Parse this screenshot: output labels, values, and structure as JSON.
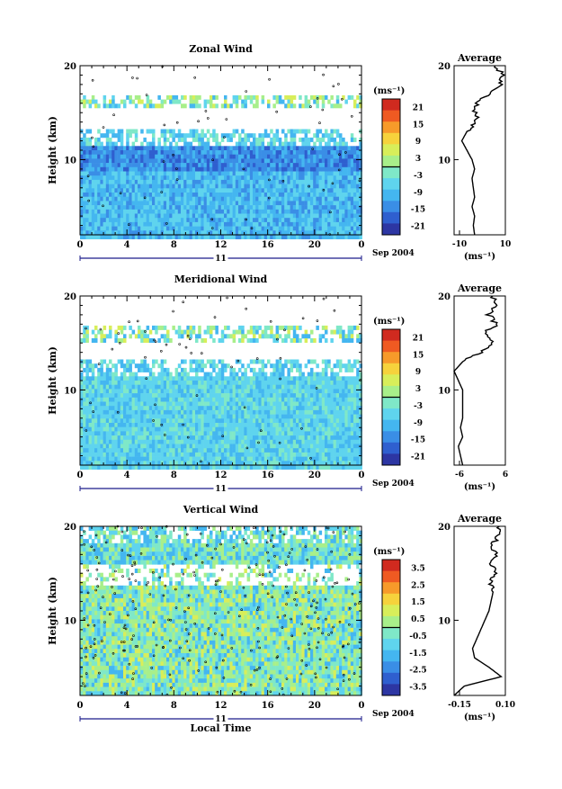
{
  "shared": {
    "ylabel": "Height (km)",
    "date_label": "Sep 2004",
    "day_label": "11",
    "xlabel": "Local Time",
    "x_ticks": [
      "0",
      "4",
      "8",
      "12",
      "16",
      "20",
      "0"
    ],
    "y_ticks": [
      "20",
      "10"
    ],
    "unit_label": "(ms⁻¹)",
    "avg_title": "Average"
  },
  "colors": {
    "palette": [
      "#2a2c6b",
      "#2d36a3",
      "#2f5fcf",
      "#3a8ee6",
      "#44b6f0",
      "#5fd4ee",
      "#7fe8c8",
      "#a8ef8a",
      "#d8ee5a",
      "#f6d23c",
      "#f79a2a",
      "#ef5a22",
      "#d02a1f"
    ]
  },
  "chart_data": [
    {
      "type": "heatmap",
      "title": "Zonal Wind",
      "xlabel": "",
      "ylabel": "Height (km)",
      "xlim": [
        0,
        24
      ],
      "ylim": [
        2,
        20
      ],
      "colorbar": {
        "ticks": [
          "21",
          "15",
          "9",
          "3",
          "-3",
          "-9",
          "-15",
          "-21"
        ],
        "range": [
          -24,
          24
        ]
      },
      "average": {
        "title": "Average",
        "xlim": [
          -10,
          10
        ],
        "xticks": [
          "-10",
          "10"
        ],
        "unit": "(ms⁻¹)",
        "profile": [
          [
            2,
            -2
          ],
          [
            3,
            -2.5
          ],
          [
            4,
            -2
          ],
          [
            5,
            -3
          ],
          [
            6,
            -2
          ],
          [
            7,
            -2.5
          ],
          [
            8,
            -3
          ],
          [
            9,
            -2
          ],
          [
            10,
            -3
          ],
          [
            11,
            -5
          ],
          [
            12,
            -7
          ],
          [
            13,
            -5
          ],
          [
            14,
            -1
          ],
          [
            15,
            -2
          ],
          [
            16,
            -1
          ],
          [
            17,
            3
          ],
          [
            18,
            8
          ],
          [
            19,
            9
          ],
          [
            20,
            6
          ]
        ]
      }
    },
    {
      "type": "heatmap",
      "title": "Meridional Wind",
      "xlabel": "",
      "ylabel": "Height (km)",
      "xlim": [
        0,
        24
      ],
      "ylim": [
        2,
        20
      ],
      "colorbar": {
        "ticks": [
          "21",
          "15",
          "9",
          "3",
          "-3",
          "-9",
          "-15",
          "-21"
        ],
        "range": [
          -24,
          24
        ]
      },
      "average": {
        "title": "Average",
        "xlim": [
          -6,
          6
        ],
        "xticks": [
          "-6",
          "6"
        ],
        "unit": "(ms⁻¹)",
        "profile": [
          [
            2,
            -4
          ],
          [
            3,
            -4.5
          ],
          [
            4,
            -5
          ],
          [
            5,
            -4
          ],
          [
            6,
            -4.5
          ],
          [
            7,
            -4
          ],
          [
            8,
            -4
          ],
          [
            9,
            -4
          ],
          [
            10,
            -4
          ],
          [
            11,
            -5
          ],
          [
            12,
            -6
          ],
          [
            13,
            -4
          ],
          [
            14,
            0
          ],
          [
            15,
            3
          ],
          [
            16,
            1
          ],
          [
            17,
            4
          ],
          [
            18,
            2
          ],
          [
            19,
            4
          ],
          [
            20,
            3
          ]
        ]
      }
    },
    {
      "type": "heatmap",
      "title": "Vertical Wind",
      "xlabel": "Local Time",
      "ylabel": "Height (km)",
      "xlim": [
        0,
        24
      ],
      "ylim": [
        2,
        20
      ],
      "colorbar": {
        "ticks": [
          "3.5",
          "2.5",
          "1.5",
          "0.5",
          "-0.5",
          "-1.5",
          "-2.5",
          "-3.5"
        ],
        "range": [
          -4,
          4
        ]
      },
      "average": {
        "title": "Average",
        "xlim": [
          -0.15,
          0.1
        ],
        "xticks": [
          "-0.15",
          "0.10"
        ],
        "unit": "(ms⁻¹)",
        "profile": [
          [
            2,
            -0.15
          ],
          [
            3,
            -0.1
          ],
          [
            4,
            0.08
          ],
          [
            5,
            0.02
          ],
          [
            6,
            -0.05
          ],
          [
            7,
            -0.06
          ],
          [
            8,
            -0.04
          ],
          [
            9,
            -0.02
          ],
          [
            10,
            0.0
          ],
          [
            11,
            0.02
          ],
          [
            12,
            0.03
          ],
          [
            13,
            0.04
          ],
          [
            14,
            0.02
          ],
          [
            15,
            0.05
          ],
          [
            16,
            0.03
          ],
          [
            17,
            0.05
          ],
          [
            18,
            0.04
          ],
          [
            19,
            0.06
          ],
          [
            20,
            0.07
          ]
        ]
      }
    }
  ]
}
